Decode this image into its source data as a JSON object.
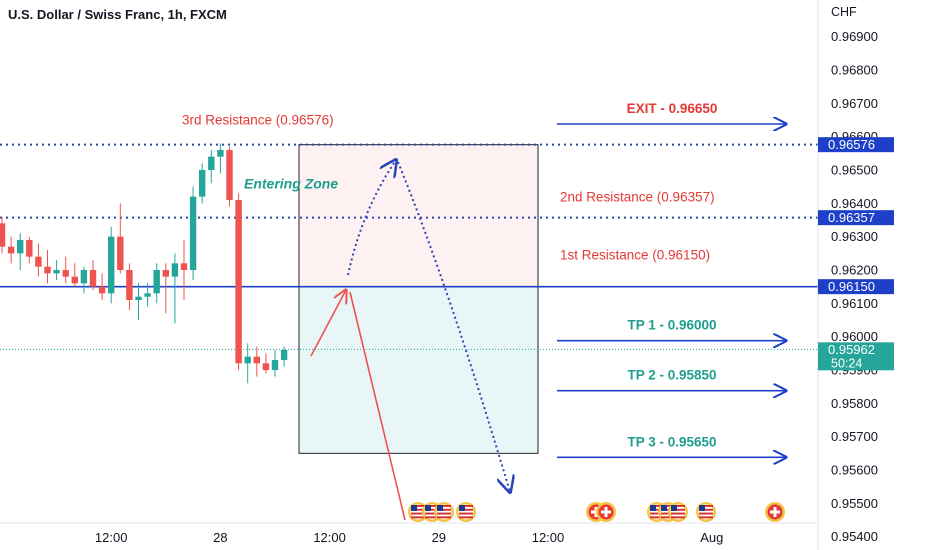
{
  "header": {
    "title": "U.S. Dollar / Swiss Franc, 1h, FXCM",
    "currency": "CHF"
  },
  "colors": {
    "up": "#26a69a",
    "down": "#ef5350",
    "red_text": "#e53935",
    "teal_text": "#1e9e8e",
    "blue": "#1e40c8",
    "dotted_blue": "#2a44b8",
    "entry_fill": "#fdf1f1",
    "tp_fill": "#e8f6f8"
  },
  "chart_data": {
    "type": "candlestick",
    "symbol": "USDCHF",
    "interval": "1h",
    "y_axis": {
      "min": 0.9536,
      "max": 0.9701,
      "ticks": [
        "0.96900",
        "0.96800",
        "0.96700",
        "0.96600",
        "0.96500",
        "0.96400",
        "0.96300",
        "0.96200",
        "0.96100",
        "0.96000",
        "0.95900",
        "0.95800",
        "0.95700",
        "0.95600",
        "0.95500",
        "0.95400"
      ]
    },
    "x_axis": {
      "ticks": [
        {
          "label": "12:00",
          "index": 12
        },
        {
          "label": "28",
          "index": 24
        },
        {
          "label": "12:00",
          "index": 36
        },
        {
          "label": "29",
          "index": 48
        },
        {
          "label": "12:00",
          "index": 60
        },
        {
          "label": "Aug",
          "index": 78
        }
      ]
    },
    "candles": [
      {
        "o": 0.9634,
        "h": 0.9636,
        "l": 0.9625,
        "c": 0.9627
      },
      {
        "o": 0.9627,
        "h": 0.963,
        "l": 0.9622,
        "c": 0.9625
      },
      {
        "o": 0.9625,
        "h": 0.9631,
        "l": 0.962,
        "c": 0.9629
      },
      {
        "o": 0.9629,
        "h": 0.963,
        "l": 0.9622,
        "c": 0.9624
      },
      {
        "o": 0.9624,
        "h": 0.9628,
        "l": 0.9618,
        "c": 0.9621
      },
      {
        "o": 0.9621,
        "h": 0.9626,
        "l": 0.9616,
        "c": 0.9619
      },
      {
        "o": 0.9619,
        "h": 0.9623,
        "l": 0.9617,
        "c": 0.962
      },
      {
        "o": 0.962,
        "h": 0.9624,
        "l": 0.9616,
        "c": 0.9618
      },
      {
        "o": 0.9618,
        "h": 0.9622,
        "l": 0.9615,
        "c": 0.9616
      },
      {
        "o": 0.9616,
        "h": 0.9621,
        "l": 0.9613,
        "c": 0.962
      },
      {
        "o": 0.962,
        "h": 0.9623,
        "l": 0.9614,
        "c": 0.9615
      },
      {
        "o": 0.9615,
        "h": 0.9619,
        "l": 0.9611,
        "c": 0.9613
      },
      {
        "o": 0.9613,
        "h": 0.9633,
        "l": 0.961,
        "c": 0.963
      },
      {
        "o": 0.963,
        "h": 0.964,
        "l": 0.9619,
        "c": 0.962
      },
      {
        "o": 0.962,
        "h": 0.9622,
        "l": 0.9608,
        "c": 0.9611
      },
      {
        "o": 0.9611,
        "h": 0.9616,
        "l": 0.9605,
        "c": 0.9612
      },
      {
        "o": 0.9612,
        "h": 0.9616,
        "l": 0.9609,
        "c": 0.9613
      },
      {
        "o": 0.9613,
        "h": 0.9622,
        "l": 0.961,
        "c": 0.962
      },
      {
        "o": 0.962,
        "h": 0.9622,
        "l": 0.9607,
        "c": 0.9618
      },
      {
        "o": 0.9618,
        "h": 0.9625,
        "l": 0.9604,
        "c": 0.9622
      },
      {
        "o": 0.9622,
        "h": 0.9629,
        "l": 0.9611,
        "c": 0.962
      },
      {
        "o": 0.962,
        "h": 0.9645,
        "l": 0.9617,
        "c": 0.9642
      },
      {
        "o": 0.9642,
        "h": 0.9652,
        "l": 0.964,
        "c": 0.965
      },
      {
        "o": 0.965,
        "h": 0.9656,
        "l": 0.9646,
        "c": 0.9654
      },
      {
        "o": 0.9654,
        "h": 0.9658,
        "l": 0.9649,
        "c": 0.9656
      },
      {
        "o": 0.9656,
        "h": 0.9657,
        "l": 0.9639,
        "c": 0.9641
      },
      {
        "o": 0.9641,
        "h": 0.9643,
        "l": 0.959,
        "c": 0.9592
      },
      {
        "o": 0.9592,
        "h": 0.9598,
        "l": 0.9586,
        "c": 0.9594
      },
      {
        "o": 0.9594,
        "h": 0.9597,
        "l": 0.9588,
        "c": 0.9592
      },
      {
        "o": 0.9592,
        "h": 0.9595,
        "l": 0.9589,
        "c": 0.959
      },
      {
        "o": 0.959,
        "h": 0.9596,
        "l": 0.9588,
        "c": 0.9593
      },
      {
        "o": 0.9593,
        "h": 0.9597,
        "l": 0.9591,
        "c": 0.9596
      }
    ],
    "levels": [
      {
        "label": "3rd Resistance (0.96576)",
        "price": 0.96576,
        "badge": "0.96576",
        "style": "dotted"
      },
      {
        "label": "2nd Resistance (0.96357)",
        "price": 0.96357,
        "badge": "0.96357",
        "style": "dotted"
      },
      {
        "label": "1st Resistance (0.96150)",
        "price": 0.9615,
        "badge": "0.96150",
        "style": "solid"
      },
      {
        "label": "",
        "price": 0.95962,
        "badge": "0.95962",
        "countdown": "50:24",
        "style": "current"
      }
    ],
    "zones": [
      {
        "name": "Entering Zone",
        "from": 0.9615,
        "to": 0.96576
      },
      {
        "name": "",
        "from": 0.9565,
        "to": 0.9615
      }
    ],
    "targets": [
      {
        "label": "EXIT - 0.96650",
        "price": 0.9665
      },
      {
        "label": "TP 1 - 0.96000",
        "price": 0.96
      },
      {
        "label": "TP 2 - 0.95850",
        "price": 0.9585
      },
      {
        "label": "TP 3 - 0.95650",
        "price": 0.9565
      }
    ],
    "event_icons": [
      "us-flag",
      "us-flag",
      "us-flag",
      "swiss-flag",
      "swiss-flag",
      "us-flag",
      "us-flag",
      "us-flag",
      "us-flag",
      "swiss-flag"
    ]
  }
}
